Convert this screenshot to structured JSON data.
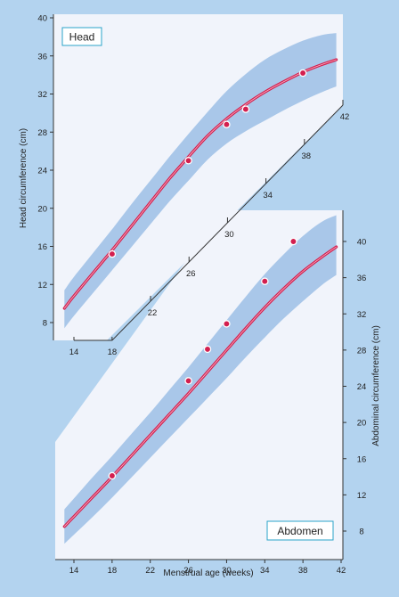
{
  "colors": {
    "page_background": "#b3d3ef",
    "panel_background": "#f1f4fb",
    "band": "#a9c7e9",
    "curve": "#d31f4f",
    "curve_highlight": "#f7b6c6",
    "point_fill": "#d31f4f",
    "point_stroke": "#ffffff",
    "axis": "#333333",
    "label_box_border": "#2aa3c9"
  },
  "chart_data": [
    {
      "type": "line",
      "label": "Head",
      "xlabel": "",
      "ylabel": "Head circumference (cm)",
      "xlim": [
        13,
        42
      ],
      "ylim": [
        6.5,
        40
      ],
      "yticks": [
        8,
        12,
        16,
        20,
        24,
        28,
        32,
        36,
        40
      ],
      "xticks": [
        14,
        18,
        22,
        26,
        30,
        34,
        38,
        42
      ],
      "x": [
        13,
        14,
        16,
        18,
        20,
        22,
        24,
        26,
        28,
        30,
        32,
        34,
        36,
        38,
        40,
        41.5
      ],
      "series": [
        {
          "role": "curve",
          "values": [
            9.5,
            10.8,
            13.2,
            15.6,
            18.1,
            20.6,
            23.1,
            25.4,
            27.6,
            29.4,
            30.9,
            32.2,
            33.3,
            34.3,
            35.1,
            35.6
          ]
        },
        {
          "role": "band_upper",
          "values": [
            11.4,
            12.8,
            15.3,
            17.8,
            20.4,
            22.9,
            25.4,
            27.8,
            30.1,
            32.3,
            34.1,
            35.6,
            36.7,
            37.6,
            38.2,
            38.4
          ]
        },
        {
          "role": "band_lower",
          "values": [
            7.4,
            8.7,
            11.1,
            13.5,
            15.9,
            18.3,
            20.7,
            22.9,
            25.1,
            26.8,
            28.1,
            29.2,
            30.3,
            31.3,
            32.2,
            32.8
          ]
        }
      ],
      "points": [
        {
          "x": 18,
          "y": 15.2
        },
        {
          "x": 26,
          "y": 25
        },
        {
          "x": 30,
          "y": 28.8
        },
        {
          "x": 32,
          "y": 30.4
        },
        {
          "x": 38,
          "y": 34.2
        }
      ]
    },
    {
      "type": "line",
      "label": "Abdomen",
      "xlabel": "Menstrual age (weeks)",
      "ylabel": "Abdominal circumference (cm)",
      "xlim": [
        13,
        42
      ],
      "ylim": [
        6,
        43
      ],
      "yticks": [
        8,
        12,
        16,
        20,
        24,
        28,
        32,
        36,
        40
      ],
      "xticks": [
        14,
        18,
        22,
        26,
        30,
        34,
        38,
        42
      ],
      "x": [
        13,
        14,
        16,
        18,
        20,
        22,
        24,
        26,
        28,
        30,
        32,
        34,
        36,
        38,
        40,
        41.5
      ],
      "series": [
        {
          "role": "curve",
          "values": [
            8.5,
            9.6,
            11.8,
            14.0,
            16.3,
            18.6,
            20.9,
            23.2,
            25.6,
            28.0,
            30.4,
            32.7,
            34.8,
            36.7,
            38.3,
            39.4
          ]
        },
        {
          "role": "band_upper",
          "values": [
            10.4,
            11.6,
            14.0,
            16.3,
            18.7,
            21.1,
            23.6,
            26.1,
            28.7,
            31.3,
            33.9,
            36.4,
            38.6,
            40.6,
            42.2,
            42.9
          ]
        },
        {
          "role": "band_lower",
          "values": [
            6.6,
            7.6,
            9.6,
            11.7,
            13.9,
            16.1,
            18.3,
            20.5,
            22.7,
            24.9,
            27.2,
            29.4,
            31.5,
            33.4,
            35.2,
            36.3
          ]
        }
      ],
      "points": [
        {
          "x": 18,
          "y": 14.1
        },
        {
          "x": 26,
          "y": 24.6
        },
        {
          "x": 28,
          "y": 28.1
        },
        {
          "x": 30,
          "y": 30.9
        },
        {
          "x": 34,
          "y": 35.6
        },
        {
          "x": 37,
          "y": 40.0
        }
      ]
    }
  ]
}
